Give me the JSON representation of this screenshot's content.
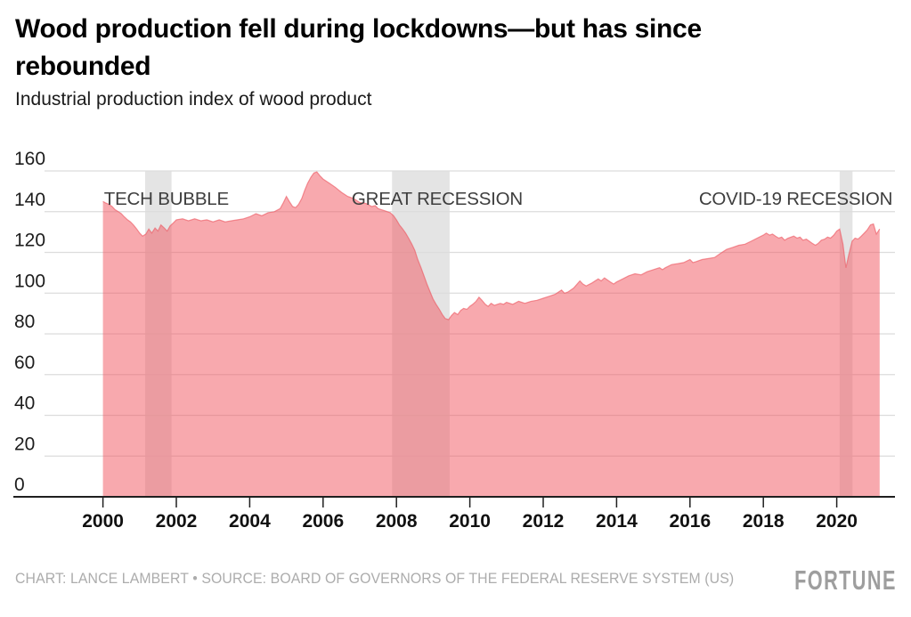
{
  "header": {
    "title": "Wood production fell during lockdowns—but has since\nrebounded",
    "subtitle": "Industrial production index of wood product"
  },
  "footer": {
    "credit": "CHART: LANCE LAMBERT • SOURCE: BOARD OF GOVERNORS OF THE FEDERAL RESERVE SYSTEM (US)",
    "brand": "FORTUNE"
  },
  "colors": {
    "area_fill": "rgba(241,83,93,0.5)",
    "area_edge": "rgba(236,90,100,0.65)",
    "band_fill": "#e4e4e4",
    "gridline": "#dcdcdc",
    "axis": "#1f1f1f",
    "tick_label": "#111111",
    "y_label": "#1c1c1c",
    "band_label": "#3e3e3e",
    "credit_text": "#acacac",
    "brand_gray": "#9e9e9e"
  },
  "chart_data": {
    "type": "area",
    "title": "Wood production fell during lockdowns—but has since rebounded",
    "subtitle": "Industrial production index of wood product",
    "xlabel": "",
    "ylabel": "",
    "xlim": [
      1998.4,
      2021.6
    ],
    "ylim": [
      0,
      160
    ],
    "x_ticks": [
      2000,
      2002,
      2004,
      2006,
      2008,
      2010,
      2012,
      2014,
      2016,
      2018,
      2020
    ],
    "y_ticks": [
      0,
      20,
      40,
      60,
      80,
      100,
      120,
      140,
      160
    ],
    "grid": true,
    "legend": "none",
    "annotations": [
      {
        "label": "TECH BUBBLE",
        "band_start": 2001.15,
        "band_end": 2001.87,
        "label_x": 2001.73,
        "label_align": "middle"
      },
      {
        "label": "GREAT RECESSION",
        "band_start": 2007.88,
        "band_end": 2009.45,
        "label_x": 2009.11,
        "label_align": "middle"
      },
      {
        "label": "COVID-19 RECESSION",
        "band_start": 2020.08,
        "band_end": 2020.43,
        "label_x": 2021.52,
        "label_align": "end"
      }
    ],
    "series": [
      {
        "name": "Industrial production index of wood product",
        "points": [
          [
            2000.0,
            145
          ],
          [
            2000.08,
            144.2
          ],
          [
            2000.17,
            143.5
          ],
          [
            2000.25,
            142.5
          ],
          [
            2000.33,
            141
          ],
          [
            2000.42,
            140
          ],
          [
            2000.5,
            139
          ],
          [
            2000.58,
            137.5
          ],
          [
            2000.67,
            136
          ],
          [
            2000.75,
            135
          ],
          [
            2000.83,
            133.5
          ],
          [
            2000.92,
            131.5
          ],
          [
            2001.0,
            129.5
          ],
          [
            2001.08,
            128
          ],
          [
            2001.17,
            129
          ],
          [
            2001.25,
            131.5
          ],
          [
            2001.33,
            129.5
          ],
          [
            2001.42,
            132
          ],
          [
            2001.5,
            130.5
          ],
          [
            2001.58,
            133.5
          ],
          [
            2001.67,
            132
          ],
          [
            2001.75,
            130.5
          ],
          [
            2001.83,
            133
          ],
          [
            2001.92,
            134.5
          ],
          [
            2002.0,
            136
          ],
          [
            2002.17,
            136.5
          ],
          [
            2002.33,
            135.5
          ],
          [
            2002.5,
            136.5
          ],
          [
            2002.67,
            135.5
          ],
          [
            2002.83,
            136
          ],
          [
            2003.0,
            135
          ],
          [
            2003.17,
            136
          ],
          [
            2003.33,
            135
          ],
          [
            2003.5,
            135.5
          ],
          [
            2003.67,
            136
          ],
          [
            2003.83,
            136.5
          ],
          [
            2004.0,
            137.5
          ],
          [
            2004.17,
            139
          ],
          [
            2004.33,
            138
          ],
          [
            2004.5,
            139.5
          ],
          [
            2004.67,
            140
          ],
          [
            2004.83,
            141.5
          ],
          [
            2004.92,
            144.5
          ],
          [
            2005.0,
            147.5
          ],
          [
            2005.08,
            145
          ],
          [
            2005.17,
            142.5
          ],
          [
            2005.25,
            142
          ],
          [
            2005.33,
            143.5
          ],
          [
            2005.42,
            146.5
          ],
          [
            2005.5,
            150.5
          ],
          [
            2005.58,
            154
          ],
          [
            2005.67,
            157
          ],
          [
            2005.75,
            159
          ],
          [
            2005.83,
            159.5
          ],
          [
            2005.92,
            157.5
          ],
          [
            2006.0,
            156
          ],
          [
            2006.17,
            154
          ],
          [
            2006.33,
            152
          ],
          [
            2006.5,
            149.5
          ],
          [
            2006.67,
            147.5
          ],
          [
            2006.83,
            146.5
          ],
          [
            2007.0,
            144.5
          ],
          [
            2007.17,
            144
          ],
          [
            2007.33,
            142.5
          ],
          [
            2007.42,
            143
          ],
          [
            2007.5,
            141.5
          ],
          [
            2007.67,
            140.5
          ],
          [
            2007.83,
            139.5
          ],
          [
            2007.92,
            138
          ],
          [
            2008.0,
            136
          ],
          [
            2008.08,
            133.5
          ],
          [
            2008.17,
            131.5
          ],
          [
            2008.25,
            129.5
          ],
          [
            2008.33,
            127
          ],
          [
            2008.42,
            124
          ],
          [
            2008.5,
            121
          ],
          [
            2008.58,
            116.5
          ],
          [
            2008.67,
            112.5
          ],
          [
            2008.75,
            108.5
          ],
          [
            2008.83,
            104.5
          ],
          [
            2008.92,
            100.5
          ],
          [
            2009.0,
            97
          ],
          [
            2009.08,
            94.5
          ],
          [
            2009.17,
            92
          ],
          [
            2009.25,
            89.5
          ],
          [
            2009.33,
            87.5
          ],
          [
            2009.42,
            87
          ],
          [
            2009.5,
            89
          ],
          [
            2009.58,
            90.5
          ],
          [
            2009.67,
            89.5
          ],
          [
            2009.75,
            91.5
          ],
          [
            2009.83,
            92.5
          ],
          [
            2009.92,
            92
          ],
          [
            2010.0,
            93.5
          ],
          [
            2010.08,
            94.5
          ],
          [
            2010.17,
            96
          ],
          [
            2010.25,
            98
          ],
          [
            2010.33,
            96.5
          ],
          [
            2010.42,
            94.5
          ],
          [
            2010.5,
            93.5
          ],
          [
            2010.58,
            95
          ],
          [
            2010.67,
            94
          ],
          [
            2010.75,
            94.5
          ],
          [
            2010.83,
            95
          ],
          [
            2010.92,
            94.5
          ],
          [
            2011.0,
            95.5
          ],
          [
            2011.17,
            94.5
          ],
          [
            2011.33,
            96
          ],
          [
            2011.5,
            95
          ],
          [
            2011.67,
            96
          ],
          [
            2011.83,
            96.5
          ],
          [
            2012.0,
            97.5
          ],
          [
            2012.17,
            98.5
          ],
          [
            2012.33,
            99.5
          ],
          [
            2012.5,
            101.5
          ],
          [
            2012.58,
            100
          ],
          [
            2012.67,
            100.5
          ],
          [
            2012.83,
            102.5
          ],
          [
            2013.0,
            106
          ],
          [
            2013.08,
            104.5
          ],
          [
            2013.17,
            103.5
          ],
          [
            2013.33,
            105
          ],
          [
            2013.5,
            107
          ],
          [
            2013.58,
            106
          ],
          [
            2013.67,
            107.5
          ],
          [
            2013.83,
            105.5
          ],
          [
            2013.92,
            104.5
          ],
          [
            2014.0,
            105.5
          ],
          [
            2014.17,
            107
          ],
          [
            2014.33,
            108.5
          ],
          [
            2014.5,
            109.5
          ],
          [
            2014.67,
            109
          ],
          [
            2014.83,
            110.5
          ],
          [
            2015.0,
            111.5
          ],
          [
            2015.17,
            112.5
          ],
          [
            2015.25,
            111.5
          ],
          [
            2015.33,
            112.5
          ],
          [
            2015.5,
            114
          ],
          [
            2015.67,
            114.5
          ],
          [
            2015.83,
            115
          ],
          [
            2016.0,
            116.5
          ],
          [
            2016.08,
            115
          ],
          [
            2016.17,
            115.5
          ],
          [
            2016.33,
            116.5
          ],
          [
            2016.5,
            117
          ],
          [
            2016.67,
            117.5
          ],
          [
            2016.83,
            119.5
          ],
          [
            2017.0,
            121.5
          ],
          [
            2017.17,
            122.5
          ],
          [
            2017.33,
            123.5
          ],
          [
            2017.5,
            124
          ],
          [
            2017.67,
            125.5
          ],
          [
            2017.83,
            127
          ],
          [
            2018.0,
            128.5
          ],
          [
            2018.08,
            129.5
          ],
          [
            2018.17,
            128.5
          ],
          [
            2018.25,
            129
          ],
          [
            2018.33,
            128
          ],
          [
            2018.42,
            127
          ],
          [
            2018.5,
            127.5
          ],
          [
            2018.58,
            126
          ],
          [
            2018.67,
            127
          ],
          [
            2018.83,
            128
          ],
          [
            2018.92,
            127
          ],
          [
            2019.0,
            127.5
          ],
          [
            2019.08,
            126
          ],
          [
            2019.17,
            126.5
          ],
          [
            2019.25,
            125.5
          ],
          [
            2019.33,
            124.5
          ],
          [
            2019.42,
            123.5
          ],
          [
            2019.5,
            124.5
          ],
          [
            2019.58,
            126
          ],
          [
            2019.67,
            126.5
          ],
          [
            2019.75,
            127.5
          ],
          [
            2019.83,
            127
          ],
          [
            2019.92,
            128.5
          ],
          [
            2020.0,
            130.5
          ],
          [
            2020.08,
            131.5
          ],
          [
            2020.17,
            124
          ],
          [
            2020.25,
            112.5
          ],
          [
            2020.33,
            119
          ],
          [
            2020.42,
            125.5
          ],
          [
            2020.5,
            127
          ],
          [
            2020.58,
            126.5
          ],
          [
            2020.67,
            128
          ],
          [
            2020.75,
            129.5
          ],
          [
            2020.83,
            131
          ],
          [
            2020.92,
            133.5
          ],
          [
            2021.0,
            134
          ],
          [
            2021.08,
            129
          ],
          [
            2021.17,
            131.5
          ]
        ]
      }
    ]
  }
}
